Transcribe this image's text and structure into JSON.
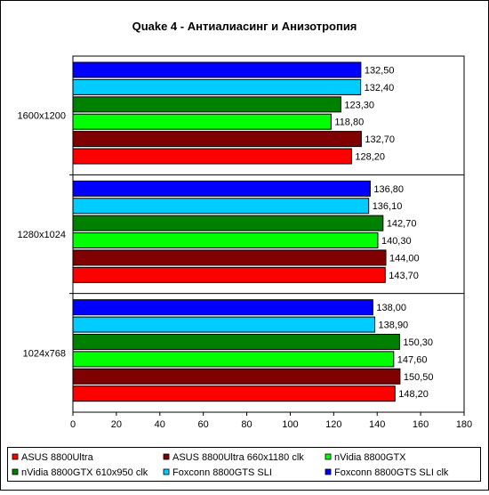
{
  "chart_data": {
    "type": "bar",
    "orientation": "horizontal",
    "title": "Quake 4 - Антиалиасинг и Анизотропия",
    "xlabel": "",
    "ylabel": "",
    "xlim": [
      0,
      180
    ],
    "x_ticks": [
      "0",
      "20",
      "40",
      "60",
      "80",
      "100",
      "120",
      "140",
      "160",
      "180"
    ],
    "grid": false,
    "legend_position": "bottom",
    "categories": [
      "1600x1200",
      "1280x1024",
      "1024x768"
    ],
    "series": [
      {
        "name": "Foxconn 8800GTS SLI clk",
        "color": "#0000FF",
        "values": [
          132.5,
          136.8,
          138.0
        ],
        "labels": [
          "132,50",
          "136,80",
          "138,00"
        ]
      },
      {
        "name": "Foxconn 8800GTS SLI",
        "color": "#00CCFF",
        "values": [
          132.4,
          136.1,
          138.9
        ],
        "labels": [
          "132,40",
          "136,10",
          "138,90"
        ]
      },
      {
        "name": "nVidia 8800GTX 610x950 clk",
        "color": "#008000",
        "values": [
          123.3,
          142.7,
          150.3
        ],
        "labels": [
          "123,30",
          "142,70",
          "150,30"
        ]
      },
      {
        "name": "nVidia 8800GTX",
        "color": "#00FF00",
        "values": [
          118.8,
          140.3,
          147.6
        ],
        "labels": [
          "118,80",
          "140,30",
          "147,60"
        ]
      },
      {
        "name": "ASUS 8800Ultra 660x1180 clk",
        "color": "#800000",
        "values": [
          132.7,
          144.0,
          150.5
        ],
        "labels": [
          "132,70",
          "144,00",
          "150,50"
        ]
      },
      {
        "name": "ASUS 8800Ultra",
        "color": "#FF0000",
        "values": [
          128.2,
          143.7,
          148.2
        ],
        "labels": [
          "128,20",
          "143,70",
          "148,20"
        ]
      }
    ],
    "legend_order": [
      "ASUS 8800Ultra",
      "ASUS 8800Ultra 660x1180 clk",
      "nVidia 8800GTX",
      "nVidia 8800GTX 610x950 clk",
      "Foxconn 8800GTS SLI",
      "Foxconn 8800GTS SLI clk"
    ]
  },
  "colors": {
    "background": "#FFFFFF",
    "plot_background": "#FFFFFF",
    "frame": "#000000"
  }
}
